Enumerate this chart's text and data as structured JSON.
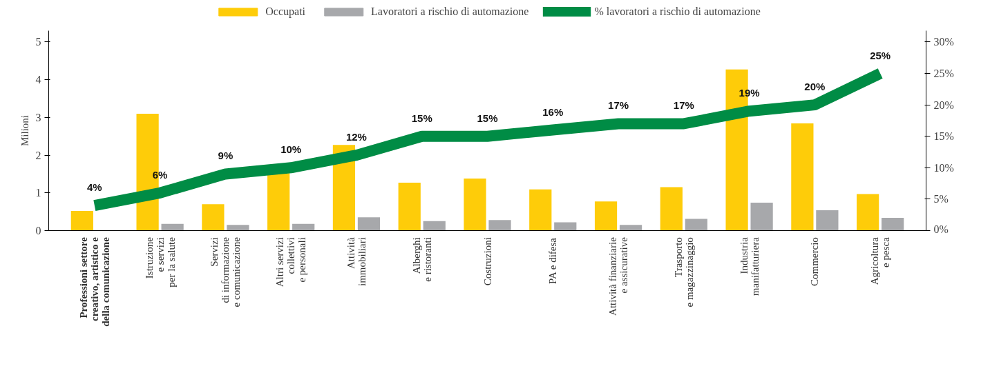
{
  "chart_data": {
    "type": "bar",
    "categories": [
      "Professioni settore\ncreativo, artistico e\ndella comunicazione",
      "Istruzione\ne servizi\nper la salute",
      "Servizi\ndi informazione\ne comunicazione",
      "Altri servizi\ncollettivi\ne personali",
      "Attività\nimmobiliari",
      "Alberghi\ne ristoranti",
      "Costruzioni",
      "PA e difesa",
      "Attività finanziarie\ne assicurative",
      "Trasporto\ne magazzinaggio",
      "Industria\nmanifatturiera",
      "Commercio",
      "Agricoltura\ne pesca"
    ],
    "series": [
      {
        "name": "Occupati",
        "color": "#fecc09",
        "values": [
          0.52,
          3.1,
          0.7,
          1.52,
          2.27,
          1.27,
          1.38,
          1.09,
          0.77,
          1.15,
          4.27,
          2.84,
          0.97
        ]
      },
      {
        "name": "Lavoratori a rischio di automazione",
        "color": "#a7a8ab",
        "values": [
          null,
          0.18,
          0.15,
          0.18,
          0.35,
          0.25,
          0.28,
          0.22,
          0.15,
          0.31,
          0.74,
          0.54,
          0.34
        ]
      },
      {
        "name": "% lavoratori a rischio di automazione",
        "type": "line",
        "axis": "y2",
        "color": "#008c45",
        "values": [
          4,
          6,
          9,
          10,
          12,
          15,
          15,
          16,
          17,
          17,
          19,
          20,
          25
        ],
        "value_labels": [
          "4%",
          "6%",
          "9%",
          "10%",
          "12%",
          "15%",
          "15%",
          "16%",
          "17%",
          "17%",
          "19%",
          "20%",
          "25%"
        ]
      }
    ],
    "ylabel": "Milioni",
    "ylim": [
      0,
      5.3
    ],
    "yticks": [
      0,
      1,
      2,
      3,
      4,
      5
    ],
    "y2lim": [
      0,
      31.8
    ],
    "y2ticks": [
      {
        "value": 0,
        "label": "0%"
      },
      {
        "value": 5,
        "label": "5%"
      },
      {
        "value": 10,
        "label": "10%"
      },
      {
        "value": 15,
        "label": "15%"
      },
      {
        "value": 20,
        "label": "20%"
      },
      {
        "value": 25,
        "label": "25%"
      },
      {
        "value": 30,
        "label": "30%"
      }
    ],
    "grid": false,
    "legend": "top"
  }
}
